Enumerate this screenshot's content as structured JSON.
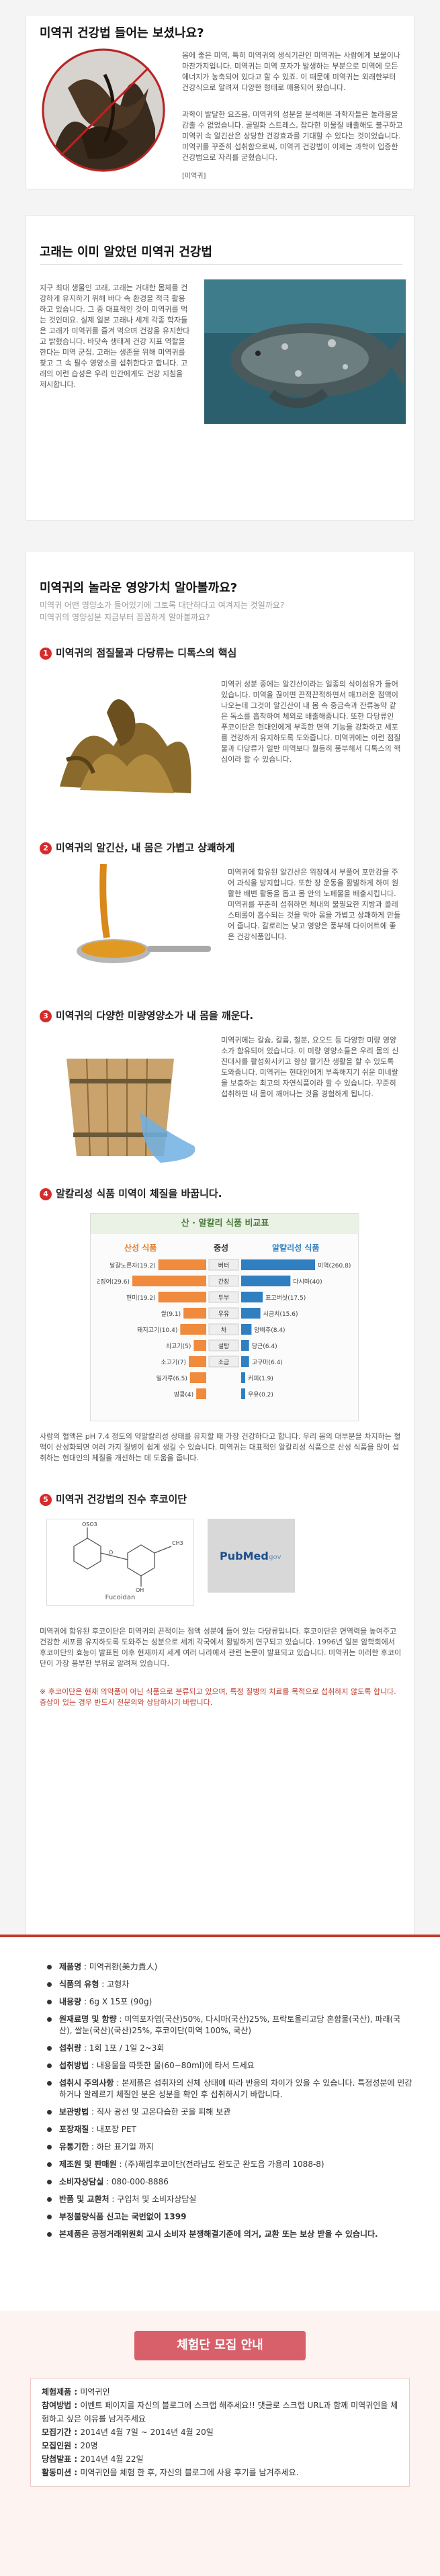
{
  "intro": {
    "title": "미역귀 건강법 들어는 보셨나요?",
    "para1": "몸에 좋은 미역, 특히 미역귀의 생식기관인 미역귀는 사람에게 보물이나 마찬가지입니다. 미역귀는 미역 포자가 발생하는 부분으로 미역에 모든 에너지가 농축되어 있다고 할 수 있죠. 이 때문에 미역귀는 외래한부터 건강식으로 알려져 다양한 형태로 애용되어 왔습니다.",
    "para2": "과학이 발달한 요즈음, 미역귀의 성분을 분석해본 과학자들은 놀라움을 감출 수 없었습니다. 골밀화 스트레스, 잡다한 이물질 배출해도 불구하고 미역귀 속 알긴산은 상당한 건강효과를 기대할 수 있다는 것이었습니다. 미역귀를 꾸준히 섭취함으로써, 미역귀 건강법이 이제는 과학이 입증한 건강법으로 자리를 굳혔습니다.",
    "caption": "[미역귀]"
  },
  "whale": {
    "title": "고래는 이미 알았던 미역귀 건강법",
    "para": "지구 최대 생물인 고래, 고래는 거대한 몸체를 건강하게 유지하기 위해 바다 속 환경을 적극 활용하고 있습니다. 그 중 대표적인 것이 미역귀를 먹는 것인데요. 실제 일본 고래나 세계 각종 학자들은 고래가 미역귀를 즐겨 먹으며 건강을 유지한다고 밝혔습니다. 바닷속 생태계 건강 지표 역할을 한다는 미역 군집, 고래는 생존을 위해 미역귀를 찾고 그 속 필수 영양소를 섭취한다고 합니다. 고래의 이런 습성은 우리 인간에게도 건강 지침을 제시합니다."
  },
  "value": {
    "title": "미역귀의 놀라운 영양가치 알아볼까요?",
    "subtitle1": "미역귀 어떤 영양소가 들어있기에 그토록 대단하다고 여겨지는 것일까요?",
    "subtitle2": "미역귀의 영양성분 지금부터 꼼꼼하게 알아볼까요?",
    "p1": {
      "num": "1",
      "title": "미역귀의 점질물과 다당류는 디톡스의 핵심",
      "text": "미역귀 성분 중에는 알긴산이라는 일종의 식이섬유가 들어있습니다. 미역을 끊이면 끈적끈적하면서 매끄러운 점액이 나오는데 그것이 알긴산이 내 몸 속 중금속과 잔류농약 같은 독소를 흡착하여 체외로 배출해줍니다. 또한 다당류인 푸코이단은 현대인에게 부족한 면역 기능을 강화하고 세포를 건강하게 유지하도록 도와줍니다. 미역귀에는 이런 점질물과 다당류가 일반 미역보다 월등히 풍부해서 디톡스의 핵심이라 할 수 있습니다."
    },
    "p2": {
      "num": "2",
      "title": "미역귀의 알긴산, 내 몸은 가볍고 상쾌하게",
      "text": "미역귀에 함유된 알긴산은 위장에서 부풀어 포만감을 주어 과식을 방지합니다. 또한 장 운동을 활발하게 하여 원활한 배변 활동을 돕고 몸 안의 노폐물을 배출시킵니다. 미역귀를 꾸준히 섭취하면 체내의 불필요한 지방과 콜레스테롤이 흡수되는 것을 막아 몸을 가볍고 상쾌하게 만들어 줍니다. 칼로리는 낮고 영양은 풍부해 다이어트에 좋은 건강식품입니다."
    },
    "p3": {
      "num": "3",
      "title": "미역귀의 다양한 미량영양소가 내 몸을 깨운다.",
      "text": "미역귀에는 칼슘, 칼륨, 철분, 요오드 등 다양한 미량 영양소가 함유되어 있습니다. 이 미량 영양소들은 우리 몸의 신진대사를 활성화시키고 항상 활기찬 생활을 할 수 있도록 도와줍니다. 미역귀는 현대인에게 부족해지기 쉬운 미네랄을 보충하는 최고의 자연식품이라 할 수 있습니다. 꾸준히 섭취하면 내 몸이 깨어나는 것을 경험하게 됩니다."
    },
    "p4": {
      "num": "4",
      "title": "알칼리성 식품 미역이 체질을 바꿉니다.",
      "note": "사람의 혈액은 pH 7.4 정도의 약알칼리성 상태를 유지할 때 가장 건강하다고 합니다. 우리 몸의 대부분을 차지하는 혈액이 산성화되면 여러 가지 질병이 쉽게 생길 수 있습니다. 미역귀는 대표적인 알칼리성 식품으로 산성 식품을 많이 섭취하는 현대인의 체질을 개선하는 데 도움을 줍니다."
    },
    "p5": {
      "num": "5",
      "title": "미역귀 건강법의 진수 후코이단",
      "text": "미역귀에 함유된 후코이단은 미역귀의 끈적이는 점액 성분에 들어 있는 다당류입니다. 후코이단은 면역력을 높여주고 건강한 세포를 유지하도록 도와주는 성분으로 세계 각국에서 활발하게 연구되고 있습니다. 1996년 일본 암학회에서 후코이단의 효능이 발표된 이후 현재까지 세계 여러 나라에서 관련 논문이 발표되고 있습니다. 미역귀는 이러한 후코이단이 가장 풍부한 부위로 알려져 있습니다.",
      "warning": "※ 후코이단은 현재 의약품이 아닌 식품으로 분류되고 있으며, 특정 질병의 치료를 목적으로 섭취하지 않도록 합니다. 증상이 있는 경우 반드시 전문의와 상담하시기 바랍니다."
    }
  },
  "chart": {
    "title": "산 · 알칼리 식품 비교표",
    "acid_label": "산성 식품",
    "neutral_label": "중성",
    "alkaline_label": "알칼리성 식품",
    "footnote": "출처 : 식품 산·알칼리도 비교표"
  },
  "chart_data": {
    "type": "bar",
    "title": "산 · 알칼리 식품 비교표",
    "acid": [
      {
        "name": "달걀노른자",
        "value": 19.2
      },
      {
        "name": "오징어",
        "value": 29.6
      },
      {
        "name": "현미",
        "value": 19.2
      },
      {
        "name": "쌀",
        "value": 9.1
      },
      {
        "name": "돼지고기",
        "value": 10.4
      },
      {
        "name": "쇠고기",
        "value": 5.0
      },
      {
        "name": "소고기",
        "value": 7.0
      },
      {
        "name": "밀가루",
        "value": 6.5
      },
      {
        "name": "땅콩",
        "value": 4.0
      }
    ],
    "neutral": [
      "버터",
      "간장",
      "두부",
      "우유",
      "차",
      "설탕",
      "소금",
      "",
      ""
    ],
    "alkaline": [
      {
        "name": "미역",
        "value": 260.8
      },
      {
        "name": "다시마",
        "value": 40.0
      },
      {
        "name": "표고버섯",
        "value": 17.5
      },
      {
        "name": "시금치",
        "value": 15.6
      },
      {
        "name": "양배추",
        "value": 8.4
      },
      {
        "name": "당근",
        "value": 6.4
      },
      {
        "name": "고구마",
        "value": 6.4
      },
      {
        "name": "커피",
        "value": 1.9
      },
      {
        "name": "우유",
        "value": 0.2
      }
    ],
    "acid_color": "#f08a3c",
    "alkaline_color": "#2f7fc1"
  },
  "paper": {
    "pubmed_label": "PubMed",
    "pubmed_suffix": ".gov",
    "formula_caption": "Fucoidan"
  },
  "info": {
    "items": [
      {
        "label": "제품명",
        "value": "미역귀환(美力貴人)"
      },
      {
        "label": "식품의 유형",
        "value": "고형차"
      },
      {
        "label": "내용량",
        "value": "6g X 15포 (90g)"
      },
      {
        "label": "원재료명 및 함량",
        "value": "미역포자엽(국산)50%, 다시마(국산)25%, 프락토올리고당 혼합물(국산), 파래(국산), 쌀눈(국산)(국산)25%, 후코이단(미역 100%, 국산)"
      },
      {
        "label": "섭취량",
        "value": "1회 1포 / 1일 2~3회"
      },
      {
        "label": "섭취방법",
        "value": "내용물을 따뜻한 물(60~80ml)에 타서 드세요"
      },
      {
        "label": "섭취시 주의사항",
        "value": "본제품은 섭취자의 신체 상태에 따라 반응의 차이가 있을 수 있습니다. 특정성분에 민감하거나 알레르기 체질인 분은 성분을 확인 후 섭취하시기 바랍니다."
      },
      {
        "label": "보관방법",
        "value": "직사 광선 및 고온다습한 곳을 피해 보관"
      },
      {
        "label": "포장재질",
        "value": "내포장 PET"
      },
      {
        "label": "유통기한",
        "value": "하단 표기일 까지"
      },
      {
        "label": "제조원 및 판매원",
        "value": "(주)해림후코이단(전라남도 완도군 완도읍 가용리 1088-8)"
      },
      {
        "label": "소비자상담실",
        "value": "080-000-8886"
      },
      {
        "label": "반품 및 교환처",
        "value": "구입처 및 소비자상담실"
      },
      {
        "label": "부정불량식품 신고는 국번없이 1399",
        "value": ""
      },
      {
        "label": "본제품은 공정거래위원회 고시 소비자 분쟁해결기준에 의거, 교환 또는 보상 받을 수 있습니다.",
        "value": ""
      }
    ]
  },
  "recruit": {
    "title": "체험단 모집 안내",
    "rows": [
      {
        "label": "체험제품",
        "value": "미역귀인"
      },
      {
        "label": "참여방법",
        "value": "이벤트 페이지를 자신의 블로그에 스크랩 해주세요!! 댓글로 스크랩 URL과 함께 미역귀인을 체험하고 싶은 이유를 남겨주세요"
      },
      {
        "label": "모집기간",
        "value": "2014년 4월 7일 ~ 2014년 4월 20일"
      },
      {
        "label": "모집인원",
        "value": "20명"
      },
      {
        "label": "당첨발표",
        "value": "2014년 4월 22일"
      },
      {
        "label": "활동미션",
        "value": "미역귀인을 체험 한 후, 자신의 블로그에 사용 후기를 남겨주세요."
      }
    ]
  }
}
